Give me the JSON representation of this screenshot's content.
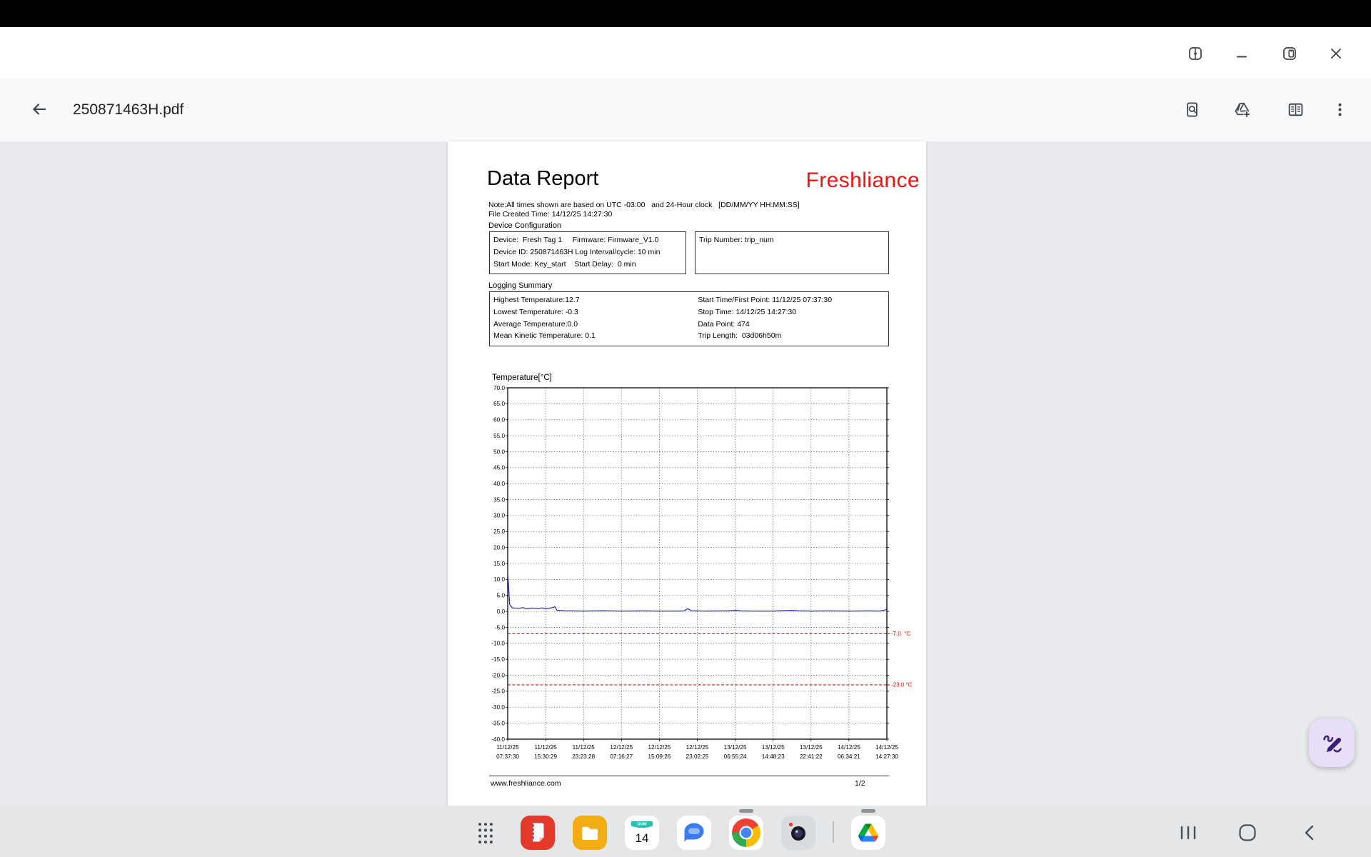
{
  "toolbar": {
    "title": "250871463H.pdf",
    "icons": [
      "back",
      "find-in-document",
      "add-to-drive",
      "reader-view",
      "more-options"
    ]
  },
  "window_controls": [
    "split-view",
    "minimize",
    "pop-up-view",
    "close"
  ],
  "pdf_page": {
    "report_title": "Data Report",
    "brand": "Freshliance",
    "brand_color": "#ee1414",
    "note_line": "Note:All times shown are based on UTC -03:00   and 24-Hour clock   [DD/MM/YY HH:MM:SS]",
    "file_created_line": "File Created Time: 14/12/25 14:27:30",
    "device_configuration": {
      "heading": "Device Configuration",
      "left_box_lines": [
        "Device:  Fresh Tag 1     Firmware: Firmware_V1.0",
        "Device ID: 250871463H Log Interval/cycle: 10 min",
        "Start Mode: Key_start    Start Delay:  0 min"
      ],
      "right_box_lines": [
        "Trip Number: trip_num"
      ]
    },
    "logging_summary": {
      "heading": "Logging Summary",
      "left_lines": [
        "Highest Temperature:12.7",
        "Lowest Temperature: -0.3",
        "Average Temperature:0.0",
        "Mean Kinetic Temperature: 0.1"
      ],
      "right_lines": [
        "Start Time/First Point: 11/12/25 07:37:30",
        "Stop Time: 14/12/25 14:27:30",
        "Data Point: 474",
        "Trip Length:  03d06h50m"
      ]
    },
    "footer": {
      "website": "www.freshliance.com",
      "page_num": "1/2"
    }
  },
  "chart_data": {
    "type": "line",
    "title": "Temperature[°C]",
    "ylabel": "Temperature (°C)",
    "ylim": [
      -40,
      70
    ],
    "yticks": [
      70,
      65,
      60,
      55,
      50,
      45,
      40,
      35,
      30,
      25,
      20,
      15,
      10,
      5,
      0,
      -5,
      -10,
      -15,
      -20,
      -25,
      -30,
      -35,
      -40
    ],
    "grid": "dotted",
    "x_labels": [
      {
        "date": "11/12/25",
        "time": "07:37:30"
      },
      {
        "date": "11/12/25",
        "time": "15:30:29"
      },
      {
        "date": "11/12/25",
        "time": "23:23:28"
      },
      {
        "date": "12/12/25",
        "time": "07:16:27"
      },
      {
        "date": "12/12/25",
        "time": "15:09:26"
      },
      {
        "date": "12/12/25",
        "time": "23:02:25"
      },
      {
        "date": "13/12/25",
        "time": "06:55:24"
      },
      {
        "date": "13/12/25",
        "time": "14:48:23"
      },
      {
        "date": "13/12/25",
        "time": "22:41:22"
      },
      {
        "date": "14/12/25",
        "time": "06:34:21"
      },
      {
        "date": "14/12/25",
        "time": "14:27:30"
      }
    ],
    "thresholds": [
      {
        "value": -7.0,
        "label": "-7.0  °C",
        "color": "#c81414"
      },
      {
        "value": -23.0,
        "label": "-23.0 °C",
        "color": "#c81414"
      }
    ],
    "series": [
      {
        "name": "Temperature",
        "color": "#2b2bc8",
        "points": [
          [
            0,
            12.7
          ],
          [
            0.005,
            2.2
          ],
          [
            0.012,
            1.1
          ],
          [
            0.03,
            1.0
          ],
          [
            0.04,
            1.15
          ],
          [
            0.05,
            0.85
          ],
          [
            0.065,
            1.05
          ],
          [
            0.08,
            0.85
          ],
          [
            0.09,
            1.1
          ],
          [
            0.1,
            0.9
          ],
          [
            0.115,
            1.1
          ],
          [
            0.125,
            1.45
          ],
          [
            0.13,
            0.35
          ],
          [
            0.15,
            0.2
          ],
          [
            0.2,
            0.1
          ],
          [
            0.25,
            0.18
          ],
          [
            0.3,
            0.1
          ],
          [
            0.35,
            0.15
          ],
          [
            0.4,
            0.1
          ],
          [
            0.45,
            0.12
          ],
          [
            0.465,
            0.15
          ],
          [
            0.475,
            0.85
          ],
          [
            0.485,
            0.2
          ],
          [
            0.52,
            0.1
          ],
          [
            0.58,
            0.15
          ],
          [
            0.6,
            0.35
          ],
          [
            0.615,
            0.15
          ],
          [
            0.65,
            0.1
          ],
          [
            0.7,
            0.12
          ],
          [
            0.75,
            0.35
          ],
          [
            0.765,
            0.18
          ],
          [
            0.8,
            0.12
          ],
          [
            0.85,
            0.15
          ],
          [
            0.9,
            0.1
          ],
          [
            0.95,
            0.15
          ],
          [
            0.98,
            0.12
          ],
          [
            0.995,
            0.4
          ],
          [
            1,
            0.75
          ]
        ]
      }
    ]
  },
  "fab": {
    "action": "annotate"
  },
  "taskbar": {
    "apps": [
      {
        "id": "samsung-notes"
      },
      {
        "id": "my-files"
      },
      {
        "id": "calendar",
        "header": "DOM",
        "day": "14"
      },
      {
        "id": "messages"
      },
      {
        "id": "chrome",
        "running": true
      },
      {
        "id": "camera"
      },
      {
        "id": "google-drive",
        "running": true
      }
    ],
    "nav": [
      "recents",
      "home",
      "back"
    ]
  },
  "colors": {
    "accent_red": "#ee1414",
    "line_blue": "#2b2bc8",
    "threshold_red": "#c81414",
    "fab_bg": "#e9def8",
    "fab_icon": "#3b1e75"
  }
}
